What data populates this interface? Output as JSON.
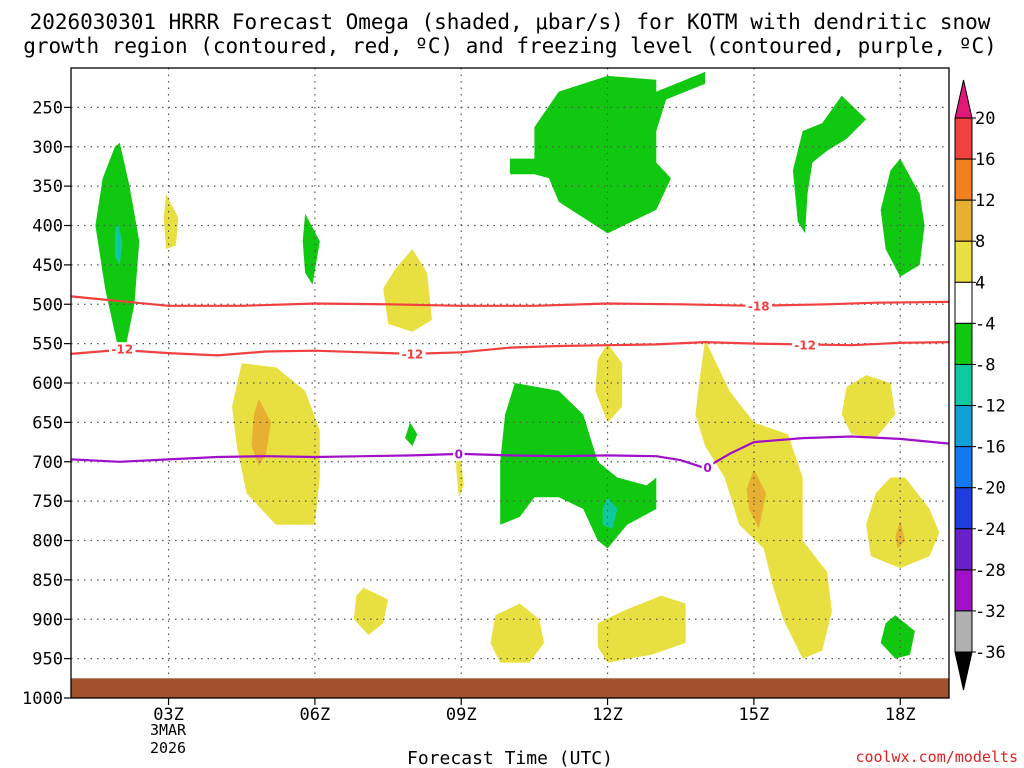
{
  "chart_data": {
    "type": "contour",
    "title_line1": "2026030301 HRRR Forecast Omega (shaded, μbar/s) for KOTM with dendritic snow",
    "title_line2": "growth region (contoured, red, ºC) and freezing level (contoured, purple, ºC)",
    "xlabel": "Forecast Time (UTC)",
    "credit": "coolwx.com/modelts",
    "x_axis": {
      "range": [
        1,
        19
      ],
      "unit": "hours UTC from 00Z 3MAR2026",
      "ticks": [
        {
          "value": 3,
          "label": "03Z"
        },
        {
          "value": 6,
          "label": "06Z"
        },
        {
          "value": 9,
          "label": "09Z"
        },
        {
          "value": 12,
          "label": "12Z"
        },
        {
          "value": 15,
          "label": "15Z"
        },
        {
          "value": 18,
          "label": "18Z"
        }
      ],
      "date_label": [
        "3MAR",
        "2026"
      ]
    },
    "y_axis": {
      "range": [
        200,
        1000
      ],
      "unit": "mb",
      "ticks": [
        250,
        300,
        350,
        400,
        450,
        500,
        550,
        600,
        650,
        700,
        750,
        800,
        850,
        900,
        950,
        1000
      ],
      "grid": true
    },
    "colorbar": {
      "labels": [
        "20",
        "16",
        "12",
        "8",
        "4",
        "-4",
        "-8",
        "-12",
        "-16",
        "-20",
        "-24",
        "-28",
        "-32",
        "-36"
      ],
      "colors": [
        "#e01878",
        "#f04040",
        "#f08020",
        "#e8b030",
        "#e8e040",
        "#ffffff",
        "#10c810",
        "#10c8a0",
        "#10a0d8",
        "#1478f0",
        "#1e3ce0",
        "#6a20c8",
        "#a010c8",
        "#b0b0b0",
        "#000000"
      ]
    },
    "ground": {
      "from_mb": 975,
      "color": "#a0522d"
    },
    "shaded_regions": [
      {
        "color": "#10c810",
        "points": [
          [
            2.0,
            295
          ],
          [
            2.2,
            350
          ],
          [
            2.4,
            420
          ],
          [
            2.3,
            500
          ],
          [
            2.1,
            560
          ],
          [
            2.0,
            565
          ],
          [
            1.7,
            480
          ],
          [
            1.5,
            400
          ],
          [
            1.65,
            340
          ],
          [
            1.9,
            300
          ]
        ]
      },
      {
        "color": "#10c8a0",
        "points": [
          [
            1.95,
            395
          ],
          [
            2.05,
            420
          ],
          [
            2.0,
            450
          ],
          [
            1.9,
            440
          ],
          [
            1.9,
            410
          ]
        ]
      },
      {
        "color": "#e8e040",
        "points": [
          [
            2.95,
            360
          ],
          [
            3.2,
            390
          ],
          [
            3.15,
            425
          ],
          [
            2.95,
            430
          ],
          [
            2.9,
            390
          ]
        ]
      },
      {
        "color": "#10c810",
        "points": [
          [
            5.8,
            385
          ],
          [
            6.1,
            420
          ],
          [
            5.95,
            475
          ],
          [
            5.8,
            460
          ],
          [
            5.75,
            420
          ]
        ]
      },
      {
        "color": "#e8e040",
        "points": [
          [
            8.0,
            430
          ],
          [
            8.3,
            460
          ],
          [
            8.4,
            520
          ],
          [
            8.0,
            535
          ],
          [
            7.5,
            525
          ],
          [
            7.4,
            480
          ],
          [
            7.65,
            455
          ]
        ]
      },
      {
        "color": "#10c810",
        "points": [
          [
            12.0,
            210
          ],
          [
            13.0,
            215
          ],
          [
            13.0,
            230
          ],
          [
            14.0,
            205
          ],
          [
            14.0,
            220
          ],
          [
            13.2,
            240
          ],
          [
            13.0,
            280
          ],
          [
            13.0,
            320
          ],
          [
            13.3,
            340
          ],
          [
            13.0,
            380
          ],
          [
            12.0,
            410
          ],
          [
            11.0,
            370
          ],
          [
            10.8,
            340
          ],
          [
            10.5,
            335
          ],
          [
            10.0,
            335
          ],
          [
            10.0,
            315
          ],
          [
            10.5,
            315
          ],
          [
            10.5,
            275
          ],
          [
            11.0,
            230
          ]
        ]
      },
      {
        "color": "#10c810",
        "points": [
          [
            16.8,
            235
          ],
          [
            17.3,
            265
          ],
          [
            16.9,
            290
          ],
          [
            16.5,
            305
          ],
          [
            16.2,
            320
          ],
          [
            16.1,
            360
          ],
          [
            16.05,
            410
          ],
          [
            15.9,
            395
          ],
          [
            15.8,
            330
          ],
          [
            16.0,
            280
          ],
          [
            16.4,
            270
          ]
        ]
      },
      {
        "color": "#10c810",
        "points": [
          [
            18.0,
            315
          ],
          [
            18.4,
            360
          ],
          [
            18.5,
            400
          ],
          [
            18.4,
            450
          ],
          [
            18.0,
            465
          ],
          [
            17.7,
            430
          ],
          [
            17.6,
            380
          ],
          [
            17.8,
            330
          ]
        ]
      },
      {
        "color": "#e8e040",
        "points": [
          [
            4.5,
            575
          ],
          [
            5.2,
            580
          ],
          [
            5.8,
            610
          ],
          [
            6.1,
            660
          ],
          [
            6.1,
            720
          ],
          [
            6.0,
            780
          ],
          [
            5.2,
            780
          ],
          [
            4.6,
            740
          ],
          [
            4.4,
            680
          ],
          [
            4.3,
            630
          ]
        ]
      },
      {
        "color": "#e8b030",
        "points": [
          [
            4.85,
            620
          ],
          [
            5.1,
            650
          ],
          [
            5.0,
            690
          ],
          [
            4.85,
            705
          ],
          [
            4.7,
            680
          ],
          [
            4.75,
            640
          ]
        ]
      },
      {
        "color": "#10c810",
        "points": [
          [
            7.95,
            650
          ],
          [
            8.1,
            665
          ],
          [
            8.0,
            680
          ],
          [
            7.85,
            670
          ]
        ]
      },
      {
        "color": "#e8e040",
        "points": [
          [
            8.9,
            680
          ],
          [
            9.0,
            700
          ],
          [
            9.05,
            730
          ],
          [
            8.95,
            745
          ],
          [
            8.9,
            710
          ]
        ]
      },
      {
        "color": "#10c810",
        "points": [
          [
            10.1,
            600
          ],
          [
            11.0,
            610
          ],
          [
            11.5,
            640
          ],
          [
            11.8,
            700
          ],
          [
            12.2,
            720
          ],
          [
            12.8,
            730
          ],
          [
            13.0,
            720
          ],
          [
            13.0,
            760
          ],
          [
            12.4,
            780
          ],
          [
            12.0,
            810
          ],
          [
            11.8,
            800
          ],
          [
            11.5,
            760
          ],
          [
            11.0,
            745
          ],
          [
            10.5,
            745
          ],
          [
            10.2,
            770
          ],
          [
            9.8,
            780
          ],
          [
            9.8,
            700
          ],
          [
            9.9,
            640
          ]
        ]
      },
      {
        "color": "#10c8a0",
        "points": [
          [
            12.0,
            745
          ],
          [
            12.2,
            760
          ],
          [
            12.1,
            785
          ],
          [
            11.9,
            780
          ],
          [
            11.9,
            760
          ]
        ]
      },
      {
        "color": "#e8e040",
        "points": [
          [
            12.0,
            550
          ],
          [
            12.3,
            575
          ],
          [
            12.3,
            630
          ],
          [
            12.0,
            650
          ],
          [
            11.75,
            610
          ],
          [
            11.8,
            570
          ]
        ]
      },
      {
        "color": "#e8e040",
        "points": [
          [
            14.0,
            545
          ],
          [
            14.5,
            610
          ],
          [
            15.0,
            650
          ],
          [
            15.7,
            665
          ],
          [
            16.0,
            720
          ],
          [
            16.0,
            800
          ],
          [
            16.5,
            840
          ],
          [
            16.6,
            890
          ],
          [
            16.4,
            940
          ],
          [
            16.0,
            950
          ],
          [
            15.6,
            900
          ],
          [
            15.4,
            860
          ],
          [
            15.2,
            810
          ],
          [
            14.7,
            780
          ],
          [
            14.4,
            720
          ],
          [
            14.0,
            680
          ],
          [
            13.8,
            640
          ],
          [
            13.9,
            590
          ]
        ]
      },
      {
        "color": "#e8b030",
        "points": [
          [
            15.0,
            710
          ],
          [
            15.25,
            740
          ],
          [
            15.1,
            785
          ],
          [
            14.9,
            760
          ],
          [
            14.85,
            735
          ]
        ]
      },
      {
        "color": "#e8e040",
        "points": [
          [
            17.3,
            590
          ],
          [
            17.8,
            600
          ],
          [
            17.9,
            640
          ],
          [
            17.5,
            670
          ],
          [
            17.0,
            665
          ],
          [
            16.8,
            640
          ],
          [
            16.9,
            605
          ]
        ]
      },
      {
        "color": "#e8e040",
        "points": [
          [
            18.1,
            720
          ],
          [
            18.6,
            760
          ],
          [
            18.8,
            790
          ],
          [
            18.6,
            820
          ],
          [
            18.0,
            835
          ],
          [
            17.4,
            820
          ],
          [
            17.3,
            780
          ],
          [
            17.5,
            740
          ],
          [
            17.8,
            720
          ]
        ]
      },
      {
        "color": "#e8b030",
        "points": [
          [
            18.0,
            775
          ],
          [
            18.1,
            800
          ],
          [
            17.95,
            810
          ],
          [
            17.9,
            795
          ]
        ]
      },
      {
        "color": "#e8e040",
        "points": [
          [
            7.0,
            860
          ],
          [
            7.5,
            875
          ],
          [
            7.4,
            905
          ],
          [
            7.1,
            920
          ],
          [
            6.8,
            900
          ],
          [
            6.85,
            870
          ]
        ]
      },
      {
        "color": "#e8e040",
        "points": [
          [
            10.2,
            880
          ],
          [
            10.6,
            900
          ],
          [
            10.7,
            930
          ],
          [
            10.4,
            955
          ],
          [
            9.8,
            955
          ],
          [
            9.6,
            930
          ],
          [
            9.7,
            895
          ]
        ]
      },
      {
        "color": "#e8e040",
        "points": [
          [
            13.1,
            870
          ],
          [
            13.6,
            880
          ],
          [
            13.6,
            930
          ],
          [
            12.9,
            945
          ],
          [
            12.0,
            955
          ],
          [
            11.8,
            935
          ],
          [
            11.8,
            905
          ],
          [
            12.3,
            890
          ]
        ]
      },
      {
        "color": "#10c810",
        "points": [
          [
            17.9,
            895
          ],
          [
            18.3,
            915
          ],
          [
            18.2,
            945
          ],
          [
            17.9,
            950
          ],
          [
            17.6,
            930
          ],
          [
            17.7,
            905
          ]
        ]
      }
    ],
    "contours": [
      {
        "name": "-18",
        "color": "#f04040",
        "label": "-18",
        "label_at": [
          15.1,
          502
        ],
        "points": [
          [
            1,
            490
          ],
          [
            2,
            496
          ],
          [
            3,
            502
          ],
          [
            4.5,
            502
          ],
          [
            6,
            499
          ],
          [
            7.5,
            500
          ],
          [
            9,
            502
          ],
          [
            10.5,
            502
          ],
          [
            12,
            499
          ],
          [
            13.5,
            500
          ],
          [
            15,
            502
          ],
          [
            16.5,
            500
          ],
          [
            17.5,
            498
          ],
          [
            19,
            497
          ]
        ]
      },
      {
        "name": "-12",
        "color": "#f04040",
        "label": "-12",
        "label_at": [
          2.05,
          557
        ],
        "points": [
          [
            1,
            563
          ],
          [
            2,
            558
          ],
          [
            3,
            562
          ],
          [
            4,
            565
          ],
          [
            5,
            560
          ],
          [
            6,
            559
          ],
          [
            7,
            561
          ],
          [
            8,
            563
          ],
          [
            9,
            561
          ],
          [
            10,
            555
          ],
          [
            11,
            553
          ],
          [
            12,
            552
          ],
          [
            13,
            551
          ],
          [
            14,
            548
          ],
          [
            15,
            550
          ],
          [
            16,
            551
          ],
          [
            17,
            552
          ],
          [
            18,
            549
          ],
          [
            19,
            548
          ]
        ]
      },
      {
        "name": "-12",
        "color": "#f04040",
        "label": "-12",
        "label_at": [
          8.0,
          563
        ],
        "points": []
      },
      {
        "name": "-12",
        "color": "#f04040",
        "label": "-12",
        "label_at": [
          16.05,
          552
        ],
        "points": []
      },
      {
        "name": "0",
        "color": "#a010c8",
        "label": "0",
        "label_at": [
          8.95,
          690
        ],
        "points": [
          [
            1,
            697
          ],
          [
            2,
            700
          ],
          [
            3,
            697
          ],
          [
            4,
            694
          ],
          [
            5,
            693
          ],
          [
            6,
            694
          ],
          [
            7,
            693
          ],
          [
            8,
            692
          ],
          [
            9,
            690
          ],
          [
            10,
            692
          ],
          [
            11,
            693
          ],
          [
            12,
            692
          ],
          [
            13,
            693
          ],
          [
            13.5,
            698
          ],
          [
            14,
            708
          ],
          [
            14.5,
            690
          ],
          [
            15,
            675
          ],
          [
            16,
            670
          ],
          [
            17,
            668
          ],
          [
            18,
            671
          ],
          [
            19,
            677
          ]
        ]
      },
      {
        "name": "0",
        "color": "#a010c8",
        "label": "0",
        "label_at": [
          14.05,
          707
        ],
        "points": []
      }
    ]
  }
}
